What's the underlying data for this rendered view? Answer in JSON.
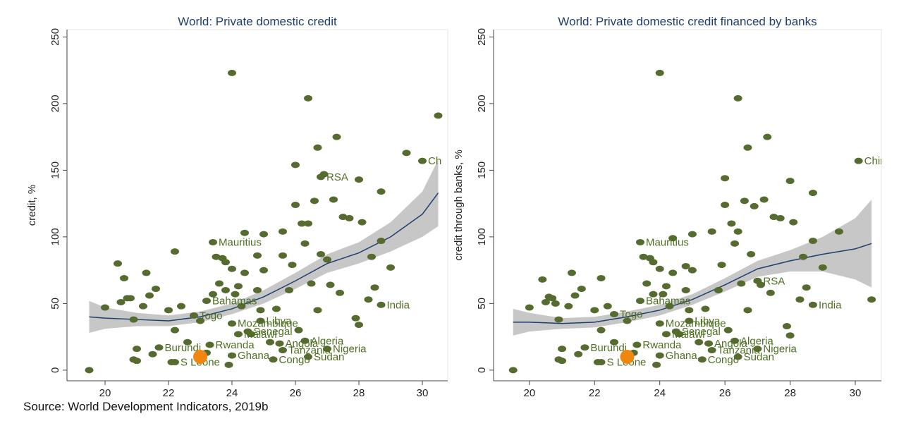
{
  "source": "Source: World Development Indicators, 2019b",
  "chart_data": [
    {
      "type": "scatter",
      "title": "World: Private domestic credit",
      "y_label": "credit, %",
      "xlim": [
        18.8,
        30.8
      ],
      "ylim": [
        -8,
        255.5
      ],
      "xticks": [
        20,
        22,
        24,
        26,
        28,
        30
      ],
      "yticks": [
        0,
        50,
        100,
        150,
        200,
        250
      ],
      "color": "#556b2f",
      "label_color": "#4f6f22",
      "x": [
        19.5,
        20,
        20.4,
        20.5,
        20.6,
        20.7,
        20.8,
        20.9,
        20.9,
        21,
        21,
        21.2,
        21.3,
        21.4,
        21.6,
        21.5,
        22,
        22.1,
        22.2,
        22.2,
        22.4,
        22.6,
        23,
        23.2,
        23.4,
        23.5,
        23.6,
        23.7,
        23.8,
        23.8,
        23.9,
        24,
        24,
        24.1,
        24.2,
        24.3,
        24.4,
        24.4,
        24.6,
        24.8,
        24.8,
        24.9,
        25,
        25,
        25.2,
        25.4,
        25.6,
        25.6,
        25.8,
        25.9,
        26,
        26,
        26.1,
        26.2,
        26.3,
        26.4,
        26.4,
        26.5,
        26.6,
        26.7,
        26.7,
        26.8,
        26.9,
        27,
        27.1,
        27.3,
        27.2,
        27.4,
        27.5,
        27.7,
        27.9,
        28,
        28,
        28.1,
        28.3,
        28.4,
        28.5,
        28.7,
        28.7,
        29,
        29.5,
        30.5
      ],
      "values": [
        0,
        47,
        80,
        51,
        69,
        54,
        54,
        38,
        8,
        7,
        16,
        48,
        73,
        56,
        61,
        12,
        45,
        6,
        89,
        30,
        48,
        21,
        37,
        13,
        57,
        85,
        65,
        84,
        81,
        60,
        4,
        76,
        223,
        57,
        63,
        48,
        73,
        103,
        27,
        60,
        86,
        45,
        102,
        75,
        21,
        46,
        104,
        86,
        60,
        79,
        154,
        124,
        30,
        110,
        95,
        204,
        110,
        65,
        127,
        45,
        167,
        87,
        147,
        83,
        64,
        175,
        128,
        58,
        115,
        114,
        39,
        34,
        143,
        111,
        53,
        85,
        62,
        134,
        97,
        77,
        163,
        191
      ],
      "labeled_points": [
        {
          "x": 30,
          "y": 157,
          "label": "Ch"
        },
        {
          "x": 26.8,
          "y": 145,
          "label": "RSA"
        },
        {
          "x": 28.7,
          "y": 49,
          "label": "India"
        },
        {
          "x": 23.4,
          "y": 96,
          "label": "Mauritius"
        },
        {
          "x": 23.2,
          "y": 52,
          "label": "Bahamas"
        },
        {
          "x": 22.8,
          "y": 41,
          "label": "Togo"
        },
        {
          "x": 24,
          "y": 35,
          "label": "Mozambique"
        },
        {
          "x": 24.9,
          "y": 37,
          "label": "Libya"
        },
        {
          "x": 26.3,
          "y": 22,
          "label": "Algeria"
        },
        {
          "x": 25.5,
          "y": 20,
          "label": "Angola"
        },
        {
          "x": 27,
          "y": 16,
          "label": "Nigeria"
        },
        {
          "x": 21.7,
          "y": 17,
          "label": "Burundi"
        },
        {
          "x": 23.3,
          "y": 19,
          "label": "Rwanda"
        },
        {
          "x": 22.2,
          "y": 6,
          "label": "S Leone"
        },
        {
          "x": 25.3,
          "y": 8,
          "label": "Congo"
        },
        {
          "x": 26.4,
          "y": 10,
          "label": "Sudan"
        },
        {
          "x": 24.5,
          "y": 29,
          "label": "Senegal"
        },
        {
          "x": 24.2,
          "y": 27,
          "label": "Malawi"
        },
        {
          "x": 25.6,
          "y": 15,
          "label": "Tanzania"
        },
        {
          "x": 24,
          "y": 11,
          "label": "Ghana"
        }
      ],
      "highlight": {
        "x": 23,
        "y": 10,
        "color": "#f0850f"
      },
      "fit": {
        "color": "#1f3f6e",
        "band_color": "#bdbdbd",
        "x": [
          19.5,
          20,
          21,
          22,
          23,
          24,
          25,
          26,
          27,
          28,
          29,
          30,
          30.5
        ],
        "values": [
          40,
          39,
          38,
          37,
          40,
          46,
          55,
          67,
          80,
          88,
          100,
          117,
          133
        ],
        "lower": [
          28,
          31,
          33,
          33,
          36,
          42,
          50,
          61,
          73,
          80,
          89,
          100,
          108
        ],
        "upper": [
          52,
          47,
          43,
          41,
          44,
          50,
          60,
          73,
          87,
          96,
          111,
          134,
          158
        ]
      }
    },
    {
      "type": "scatter",
      "title": "World: Private domestic credit financed by banks",
      "y_label": "credit through banks, %",
      "xlim": [
        18.9,
        30.8
      ],
      "ylim": [
        -8,
        255.5
      ],
      "xticks": [
        20,
        22,
        24,
        26,
        28,
        30
      ],
      "yticks": [
        0,
        50,
        100,
        150,
        200,
        250
      ],
      "color": "#556b2f",
      "label_color": "#4f6f22",
      "x": [
        19.5,
        20,
        20.4,
        20.5,
        20.6,
        20.7,
        20.8,
        20.9,
        20.9,
        21,
        21,
        21.2,
        21.3,
        21.4,
        21.6,
        21.5,
        22,
        22.1,
        22.2,
        22.2,
        22.4,
        22.6,
        23,
        23.2,
        23.5,
        23.6,
        23.7,
        23.8,
        23.8,
        23.9,
        24,
        24,
        24.1,
        24.2,
        24.3,
        24.4,
        24.4,
        24.6,
        24.8,
        24.8,
        24.9,
        25,
        25,
        25.2,
        25.4,
        25.6,
        25.8,
        25.9,
        26,
        26,
        26.1,
        26.2,
        26.3,
        26.4,
        26.4,
        26.5,
        26.6,
        26.7,
        26.7,
        26.8,
        26.9,
        27.1,
        27.3,
        27.2,
        27.4,
        27.5,
        27.7,
        27.9,
        28,
        28,
        28.1,
        28.3,
        28.4,
        28.5,
        28.7,
        28.7,
        29,
        29.5,
        30.5
      ],
      "values": [
        0,
        47,
        68,
        51,
        55,
        54,
        50,
        38,
        8,
        7,
        16,
        48,
        73,
        56,
        61,
        12,
        45,
        6,
        69,
        30,
        48,
        21,
        37,
        13,
        85,
        65,
        84,
        81,
        57,
        4,
        76,
        223,
        57,
        63,
        48,
        73,
        99,
        27,
        60,
        78,
        45,
        102,
        75,
        21,
        46,
        104,
        60,
        79,
        144,
        124,
        30,
        110,
        95,
        204,
        104,
        65,
        127,
        45,
        167,
        87,
        123,
        64,
        175,
        128,
        58,
        115,
        114,
        33,
        26,
        142,
        111,
        53,
        85,
        62,
        133,
        97,
        77,
        104,
        53
      ],
      "labeled_points": [
        {
          "x": 30.1,
          "y": 157,
          "label": "China"
        },
        {
          "x": 27,
          "y": 67,
          "label": "RSA"
        },
        {
          "x": 28.7,
          "y": 49,
          "label": "India"
        },
        {
          "x": 23.4,
          "y": 96,
          "label": "Mauritius"
        },
        {
          "x": 23.4,
          "y": 52,
          "label": "Bahamas"
        },
        {
          "x": 22.6,
          "y": 42,
          "label": "Togo"
        },
        {
          "x": 24,
          "y": 35,
          "label": "Mozambique"
        },
        {
          "x": 24.9,
          "y": 37,
          "label": "Libya"
        },
        {
          "x": 26.3,
          "y": 22,
          "label": "Algeria"
        },
        {
          "x": 25.5,
          "y": 20,
          "label": "Angola"
        },
        {
          "x": 27,
          "y": 16,
          "label": "Nigeria"
        },
        {
          "x": 21.7,
          "y": 17,
          "label": "Burundi"
        },
        {
          "x": 23.3,
          "y": 19,
          "label": "Rwanda"
        },
        {
          "x": 22.2,
          "y": 6,
          "label": "S Leone"
        },
        {
          "x": 25.3,
          "y": 8,
          "label": "Congo"
        },
        {
          "x": 26.4,
          "y": 10,
          "label": "Sudan"
        },
        {
          "x": 24.5,
          "y": 29,
          "label": "Senegal"
        },
        {
          "x": 24.2,
          "y": 27,
          "label": "Malawi"
        },
        {
          "x": 25.6,
          "y": 15,
          "label": "Tanzania"
        },
        {
          "x": 24,
          "y": 11,
          "label": "Ghana"
        }
      ],
      "highlight": {
        "x": 23,
        "y": 10,
        "color": "#f0850f"
      },
      "fit": {
        "color": "#1f3f6e",
        "band_color": "#bdbdbd",
        "x": [
          19.5,
          20,
          21,
          22,
          23,
          24,
          25,
          26,
          27,
          28,
          29,
          30,
          30.5
        ],
        "values": [
          36,
          36,
          35,
          36,
          40,
          45,
          53,
          64,
          76,
          82,
          87,
          91,
          95
        ],
        "lower": [
          26,
          29,
          31,
          32,
          36,
          41,
          49,
          59,
          70,
          74,
          74,
          68,
          62
        ],
        "upper": [
          46,
          43,
          39,
          40,
          44,
          49,
          57,
          69,
          82,
          90,
          100,
          114,
          128
        ]
      }
    }
  ]
}
